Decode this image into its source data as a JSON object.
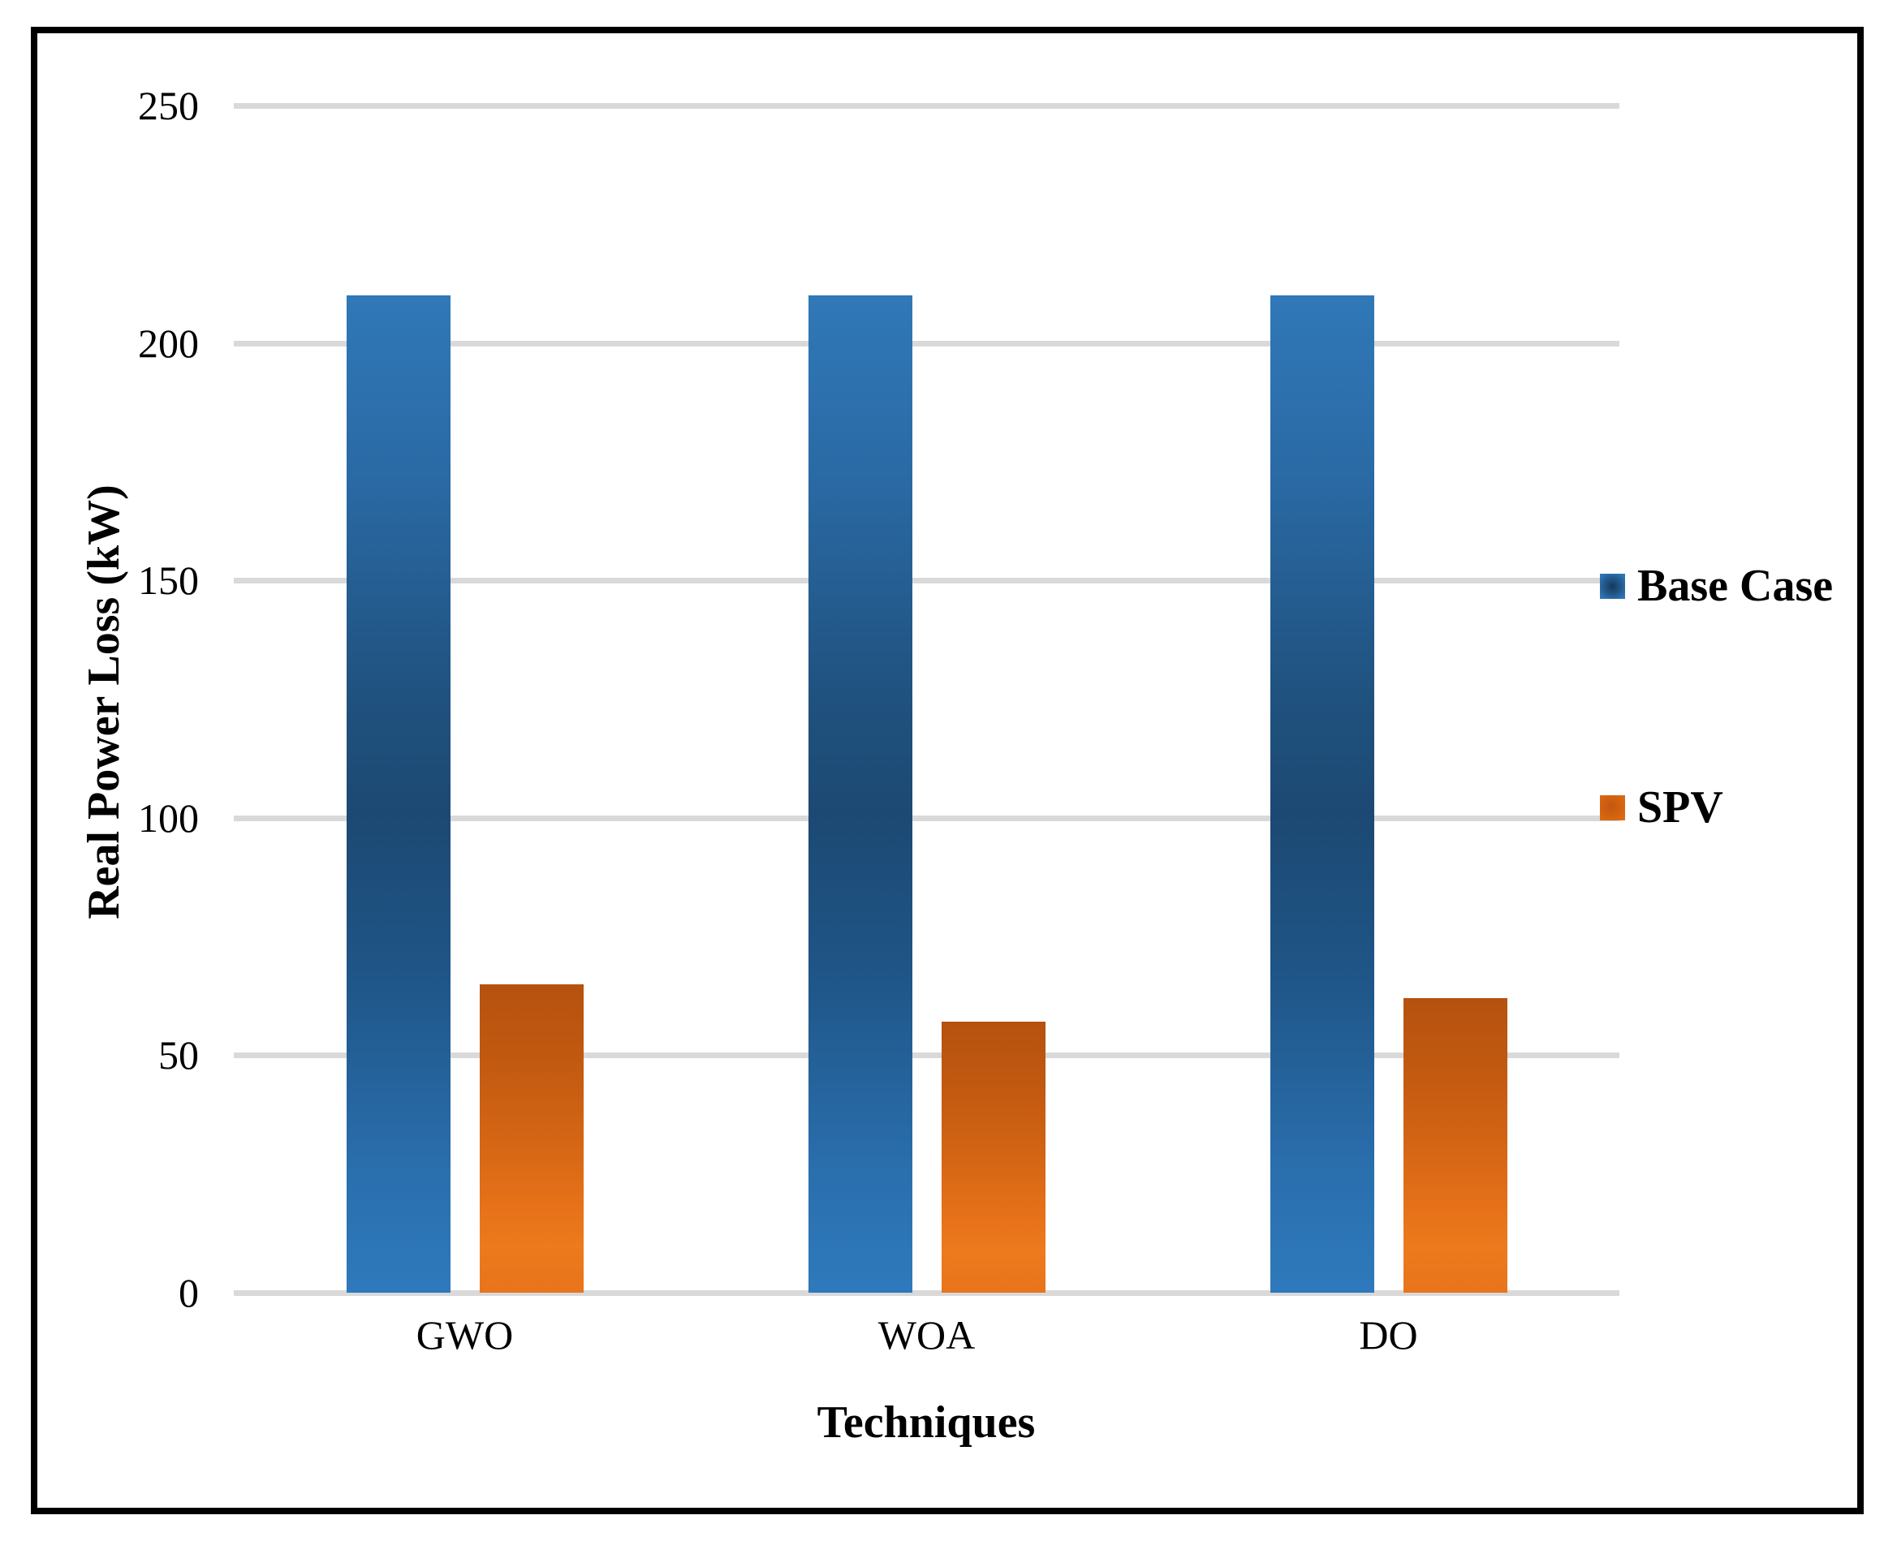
{
  "chart_data": {
    "type": "bar",
    "categories": [
      "GWO",
      "WOA",
      "DO"
    ],
    "series": [
      {
        "name": "Base Case",
        "color": "#2E75B6",
        "values": [
          210,
          210,
          210
        ]
      },
      {
        "name": "SPV",
        "color": "#E06F17",
        "values": [
          65,
          57,
          62
        ]
      }
    ],
    "xlabel": "Techniques",
    "ylabel": "Real Power Loss (kW)",
    "ylim": [
      0,
      250
    ],
    "yticks": [
      0,
      50,
      100,
      150,
      200,
      250
    ],
    "grid": true,
    "gridline_color": "#D9D9D9",
    "legend_position": "right",
    "frame_color": "#000000"
  }
}
